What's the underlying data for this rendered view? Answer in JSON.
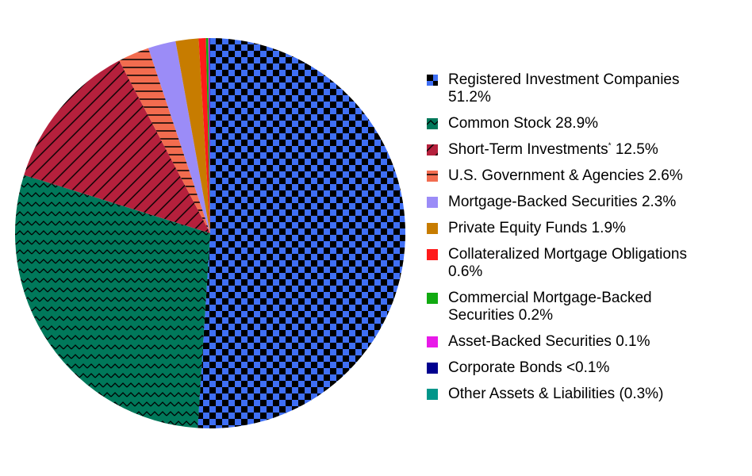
{
  "chart_data": {
    "type": "pie",
    "categories": [
      "Registered Investment Companies",
      "Common Stock",
      "Short-Term Investments*",
      "U.S. Government & Agencies",
      "Mortgage-Backed Securities",
      "Private Equity Funds",
      "Collateralized Mortgage Obligations",
      "Commercial Mortgage-Backed Securities",
      "Asset-Backed Securities",
      "Corporate Bonds",
      "Other Assets & Liabilities"
    ],
    "values": [
      51.2,
      28.9,
      12.5,
      2.6,
      2.3,
      1.9,
      0.6,
      0.2,
      0.1,
      0.05,
      -0.3
    ],
    "value_labels": [
      "51.2%",
      "28.9%",
      "12.5%",
      "2.6%",
      "2.3%",
      "1.9%",
      "0.6%",
      "0.2%",
      "0.1%",
      "<0.1%",
      "(0.3%)"
    ],
    "colors": [
      "#3f6ff5",
      "#00785a",
      "#b5203c",
      "#f26c4f",
      "#9b8cf7",
      "#c77c00",
      "#ff1a1a",
      "#11aa11",
      "#e819e8",
      "#00008f",
      "#00968a"
    ],
    "patterns": [
      "checker",
      "zigzag",
      "diagonal",
      "horizontal",
      null,
      null,
      null,
      null,
      null,
      null,
      null
    ]
  }
}
